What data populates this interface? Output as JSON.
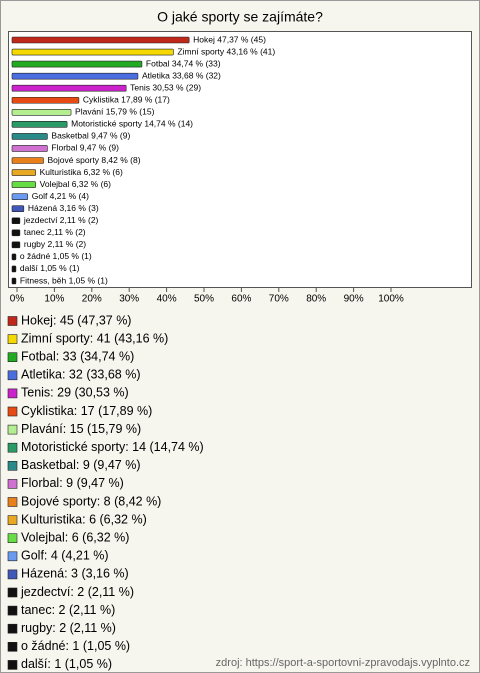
{
  "chart_data": {
    "type": "bar",
    "orientation": "horizontal",
    "title": "O jaké sporty se zajímáte?",
    "source": "zdroj: https://sport-a-sportovni-zpravodajs.vyplnto.cz",
    "categories": [
      "Hokej",
      "Zimní sporty",
      "Fotbal",
      "Atletika",
      "Tenis",
      "Cyklistika",
      "Plavání",
      "Motoristické sporty",
      "Basketbal",
      "Florbal",
      "Bojové sporty",
      "Kulturistika",
      "Volejbal",
      "Golf",
      "Házená",
      "jezdectví",
      "tanec",
      "rugby",
      "o žádné",
      "další",
      "Fitness, běh"
    ],
    "values": [
      47.37,
      43.16,
      34.74,
      33.68,
      30.53,
      17.89,
      15.79,
      14.74,
      9.47,
      9.47,
      8.42,
      6.32,
      6.32,
      4.21,
      3.16,
      2.11,
      2.11,
      2.11,
      1.05,
      1.05,
      1.05
    ],
    "value_labels": [
      "Hokej 47,37 % (45)",
      "Zimní sporty 43,16 % (41)",
      "Fotbal 34,74 % (33)",
      "Atletika 33,68 % (32)",
      "Tenis 30,53 % (29)",
      "Cyklistika 17,89 % (17)",
      "Plavání 15,79 % (15)",
      "Motoristické sporty 14,74 % (14)",
      "Basketbal 9,47 % (9)",
      "Florbal 9,47 % (9)",
      "Bojové sporty 8,42 % (8)",
      "Kulturistika 6,32 % (6)",
      "Volejbal 6,32 % (6)",
      "Golf 4,21 % (4)",
      "Házená 3,16 % (3)",
      "jezdectví 2,11 % (2)",
      "tanec 2,11 % (2)",
      "rugby 2,11 % (2)",
      "o žádné 1,05 % (1)",
      "další 1,05 % (1)",
      "Fitness, běh 1,05 % (1)"
    ],
    "legend_labels": [
      "Hokej: 45 (47,37 %)",
      "Zimní sporty: 41 (43,16 %)",
      "Fotbal: 33 (34,74 %)",
      "Atletika: 32 (33,68 %)",
      "Tenis: 29 (30,53 %)",
      "Cyklistika: 17 (17,89 %)",
      "Plavání: 15 (15,79 %)",
      "Motoristické sporty: 14 (14,74 %)",
      "Basketbal: 9 (9,47 %)",
      "Florbal: 9 (9,47 %)",
      "Bojové sporty: 8 (8,42 %)",
      "Kulturistika: 6 (6,32 %)",
      "Volejbal: 6 (6,32 %)",
      "Golf: 4 (4,21 %)",
      "Házená: 3 (3,16 %)",
      "jezdectví: 2 (2,11 %)",
      "tanec: 2 (2,11 %)",
      "rugby: 2 (2,11 %)",
      "o žádné: 1 (1,05 %)",
      "další: 1 (1,05 %)",
      "Fitness, běh: 1 (1,05 %)"
    ],
    "colors": [
      "#c0281c",
      "#f5d800",
      "#22aa22",
      "#4a6ee0",
      "#cc22cc",
      "#e84a14",
      "#b4ee90",
      "#2a9a66",
      "#2a8a8a",
      "#d070d0",
      "#e8801c",
      "#e8a824",
      "#66dd44",
      "#6a9af0",
      "#4058b8",
      "#111111",
      "#111111",
      "#111111",
      "#111111",
      "#111111",
      "#111111"
    ],
    "xlim": [
      0,
      100
    ],
    "xticks": [
      {
        "value": 0,
        "label": "0%"
      },
      {
        "value": 10,
        "label": "10%"
      },
      {
        "value": 20,
        "label": "20%"
      },
      {
        "value": 30,
        "label": "30%"
      },
      {
        "value": 40,
        "label": "40%"
      },
      {
        "value": 50,
        "label": "50%"
      },
      {
        "value": 60,
        "label": "60%"
      },
      {
        "value": 70,
        "label": "70%"
      },
      {
        "value": 80,
        "label": "80%"
      },
      {
        "value": 90,
        "label": "90%"
      },
      {
        "value": 100,
        "label": "100%"
      }
    ]
  }
}
